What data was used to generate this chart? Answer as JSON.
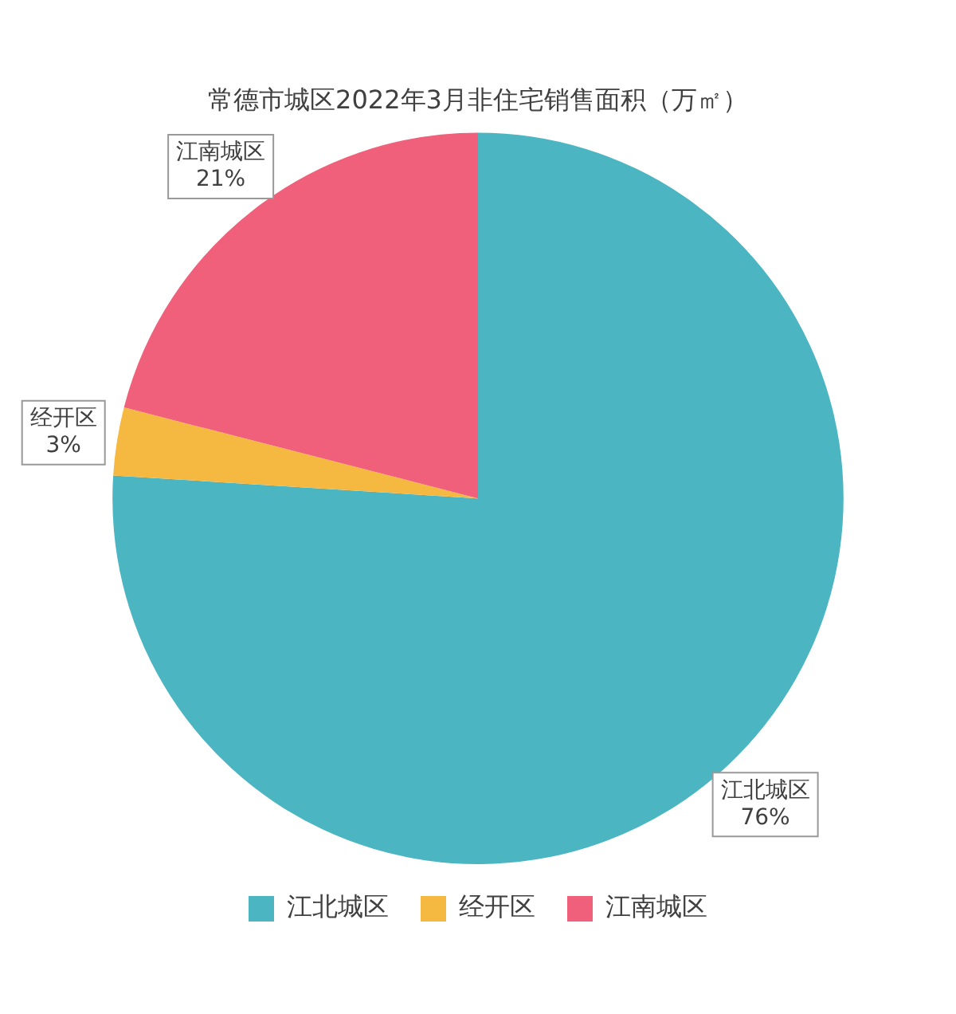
{
  "chart_data": {
    "type": "pie",
    "title": "常德市城区2022年3月非住宅销售面积（万㎡）",
    "categories": [
      "江北城区",
      "经开区",
      "江南城区"
    ],
    "values": [
      76,
      3,
      21
    ],
    "value_labels": [
      "76%",
      "3%",
      "21%"
    ],
    "colors": [
      "#4bb5c1",
      "#f5b942",
      "#f0607a"
    ],
    "legend": "bottom"
  }
}
